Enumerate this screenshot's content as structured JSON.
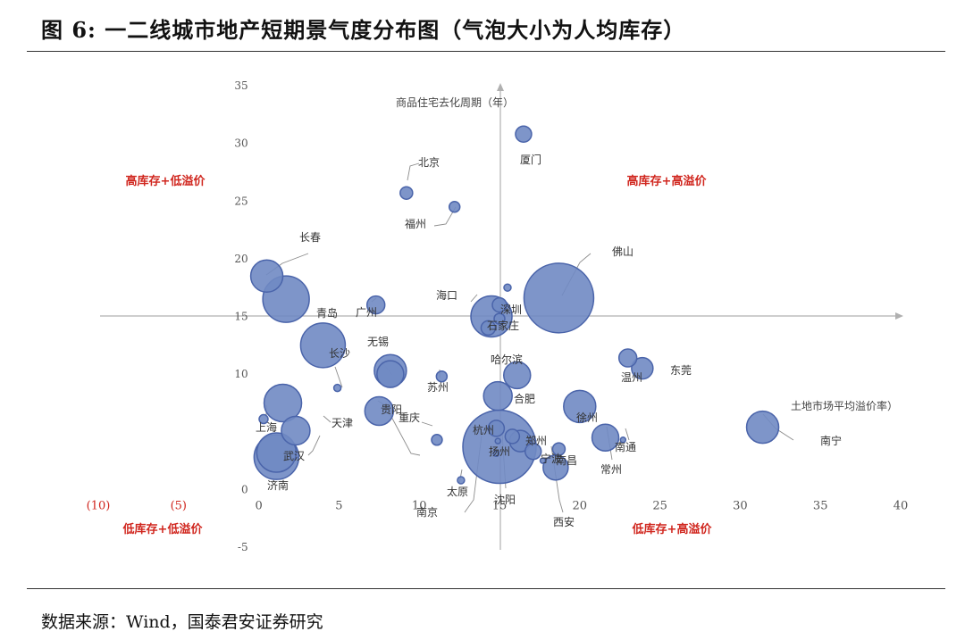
{
  "figure": {
    "title": "图 6:  一二线城市地产短期景气度分布图（气泡大小为人均库存）",
    "source": "数据来源：Wind，国泰君安证券研究"
  },
  "chart_data": {
    "type": "bubble",
    "xlabel": "土地市场平均溢价率）",
    "ylabel": "商品住宅去化周期（年）",
    "xlim": [
      -10,
      40
    ],
    "ylim": [
      -5,
      35
    ],
    "x_ticks": [
      "(10)",
      "(5)",
      "0",
      "5",
      "10",
      "15",
      "20",
      "25",
      "30",
      "35",
      "40"
    ],
    "y_ticks": [
      "35",
      "30",
      "25",
      "20",
      "15",
      "10",
      "5",
      "0",
      "-5"
    ],
    "quadrant_labels": [
      "高库存+低溢价",
      "高库存+高溢价",
      "低库存+低溢价",
      "低库存+高溢价"
    ],
    "colors": {
      "bubble_fill": "#7089c3",
      "bubble_stroke": "#4a64aa",
      "quadrant_text": "#d0261e",
      "axis": "#b0b0b0",
      "tick_neg": "#d0261e",
      "tick": "#555555",
      "leader": "#8c8c8c"
    },
    "series": [
      {
        "label": "厦门",
        "x": 16.5,
        "y": 30.8,
        "size": 9
      },
      {
        "label": "北京",
        "x": 9.2,
        "y": 25.7,
        "size": 7
      },
      {
        "label": "福州",
        "x": 12.2,
        "y": 24.5,
        "size": 6
      },
      {
        "label": "长春",
        "x": 0.5,
        "y": 18.5,
        "size": 18
      },
      {
        "label": "",
        "x": 1.7,
        "y": 16.5,
        "size": 26
      },
      {
        "label": "广州",
        "x": 7.3,
        "y": 16.0,
        "size": 10
      },
      {
        "label": "海口",
        "x": 14.5,
        "y": 15.0,
        "size": 23
      },
      {
        "label": "深圳",
        "x": 15.0,
        "y": 16.0,
        "size": 8
      },
      {
        "label": "",
        "x": 15.5,
        "y": 17.5,
        "size": 4
      },
      {
        "label": "佛山",
        "x": 18.7,
        "y": 16.6,
        "size": 39
      },
      {
        "label": "",
        "x": 14.3,
        "y": 14.0,
        "size": 8
      },
      {
        "label": "石家庄",
        "x": 15.0,
        "y": 14.8,
        "size": 6
      },
      {
        "label": "青岛",
        "x": 4.0,
        "y": 12.5,
        "size": 25
      },
      {
        "label": "长沙",
        "x": 4.9,
        "y": 8.8,
        "size": 4
      },
      {
        "label": "无锡",
        "x": 8.2,
        "y": 10.3,
        "size": 18
      },
      {
        "label": "",
        "x": 8.2,
        "y": 10.0,
        "size": 15
      },
      {
        "label": "苏州",
        "x": 11.4,
        "y": 9.8,
        "size": 6
      },
      {
        "label": "哈尔滨",
        "x": 16.1,
        "y": 9.9,
        "size": 15
      },
      {
        "label": "",
        "x": 14.9,
        "y": 8.1,
        "size": 16
      },
      {
        "label": "合肥",
        "x": 20.0,
        "y": 7.2,
        "size": 18
      },
      {
        "label": "温州",
        "x": 23.0,
        "y": 11.4,
        "size": 10
      },
      {
        "label": "东莞",
        "x": 23.9,
        "y": 10.5,
        "size": 12
      },
      {
        "label": "",
        "x": 1.5,
        "y": 7.5,
        "size": 21
      },
      {
        "label": "贵阳",
        "x": 7.5,
        "y": 6.8,
        "size": 16
      },
      {
        "label": "上海",
        "x": 0.3,
        "y": 6.1,
        "size": 5
      },
      {
        "label": "天津",
        "x": 2.3,
        "y": 5.1,
        "size": 16
      },
      {
        "label": "重庆",
        "x": 11.1,
        "y": 4.3,
        "size": 6
      },
      {
        "label": "杭州",
        "x": 14.8,
        "y": 5.3,
        "size": 9
      },
      {
        "label": "扬州",
        "x": 15.0,
        "y": 3.7,
        "size": 41
      },
      {
        "label": "",
        "x": 15.8,
        "y": 4.6,
        "size": 8
      },
      {
        "label": "郑州",
        "x": 16.3,
        "y": 4.2,
        "size": 12
      },
      {
        "label": "宁波",
        "x": 17.1,
        "y": 3.3,
        "size": 9
      },
      {
        "label": "徐州",
        "x": 18.7,
        "y": 3.5,
        "size": 7
      },
      {
        "label": "南昌",
        "x": 18.5,
        "y": 1.9,
        "size": 14
      },
      {
        "label": "常州",
        "x": 21.6,
        "y": 4.5,
        "size": 15
      },
      {
        "label": "南通",
        "x": 22.7,
        "y": 4.3,
        "size": 3
      },
      {
        "label": "南宁",
        "x": 31.4,
        "y": 5.4,
        "size": 18
      },
      {
        "label": "济南",
        "x": 1.1,
        "y": 2.8,
        "size": 25
      },
      {
        "label": "武汉",
        "x": 1.1,
        "y": 3.2,
        "size": 22
      },
      {
        "label": "太原",
        "x": 12.6,
        "y": 0.8,
        "size": 4
      },
      {
        "label": "南京",
        "x": 14.9,
        "y": 4.2,
        "size": 3
      },
      {
        "label": "沈阳",
        "x": 14.8,
        "y": 3.1,
        "size": 3
      },
      {
        "label": "西安",
        "x": 17.7,
        "y": 2.5,
        "size": 3
      }
    ]
  }
}
